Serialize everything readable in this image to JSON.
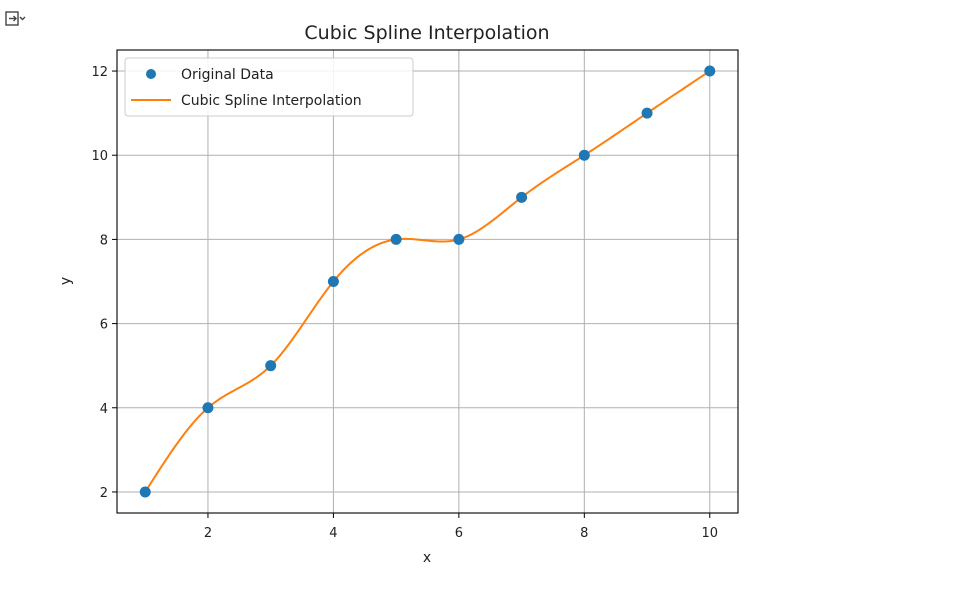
{
  "toolbar": {
    "output_toggle_icon": "output-expand-icon"
  },
  "colors": {
    "data_points": "#1f77b4",
    "spline": "#ff7f0e",
    "grid": "#b0b0b0",
    "axes": "#000000"
  },
  "chart_data": {
    "type": "line",
    "title": "Cubic Spline Interpolation",
    "xlabel": "x",
    "ylabel": "y",
    "xlim": [
      0.55,
      10.45
    ],
    "ylim": [
      1.5,
      12.5
    ],
    "xticks": [
      2,
      4,
      6,
      8,
      10
    ],
    "yticks": [
      2,
      4,
      6,
      8,
      10,
      12
    ],
    "grid": true,
    "legend_position": "top-left",
    "series": [
      {
        "name": "Original Data",
        "kind": "scatter",
        "x": [
          1,
          2,
          3,
          4,
          5,
          6,
          7,
          8,
          9,
          10
        ],
        "y": [
          2,
          4,
          5,
          7,
          8,
          8,
          9,
          10,
          11,
          12
        ]
      },
      {
        "name": "Cubic Spline Interpolation",
        "kind": "line",
        "interpolation": "natural-cubic-spline",
        "x": [
          1,
          2,
          3,
          4,
          5,
          6,
          7,
          8,
          9,
          10
        ],
        "y": [
          2,
          4,
          5,
          7,
          8,
          8,
          9,
          10,
          11,
          12
        ]
      }
    ]
  }
}
